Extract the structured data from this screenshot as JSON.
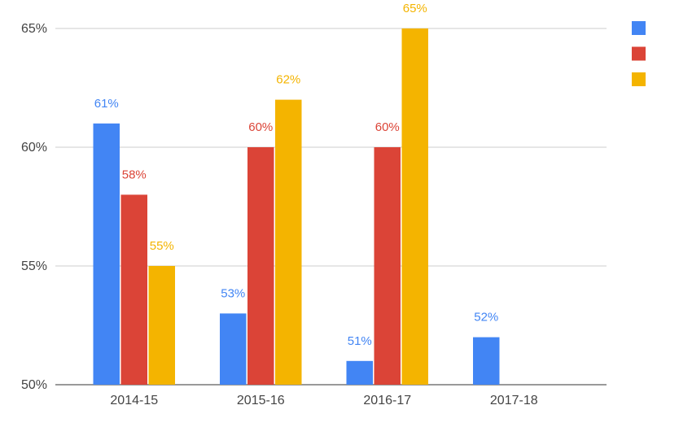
{
  "chart_data": {
    "type": "bar",
    "categories": [
      "2014-15",
      "2015-16",
      "2016-17",
      "2017-18"
    ],
    "series": [
      {
        "color": "#4285f4",
        "values": [
          61,
          53,
          51,
          52
        ]
      },
      {
        "color": "#db4437",
        "values": [
          58,
          60,
          60,
          null
        ]
      },
      {
        "color": "#f4b400",
        "values": [
          55,
          62,
          65,
          null
        ]
      }
    ],
    "data_labels": [
      [
        "61%",
        "53%",
        "51%",
        "52%"
      ],
      [
        "58%",
        "60%",
        "60%",
        null
      ],
      [
        "55%",
        "62%",
        "65%",
        null
      ]
    ],
    "yticks": [
      50,
      55,
      60,
      65
    ],
    "ytick_labels": [
      "50%",
      "55%",
      "60%",
      "65%"
    ],
    "ylim": [
      50,
      65
    ],
    "grid": true,
    "legend": "right",
    "title": "",
    "xlabel": "",
    "ylabel": ""
  }
}
